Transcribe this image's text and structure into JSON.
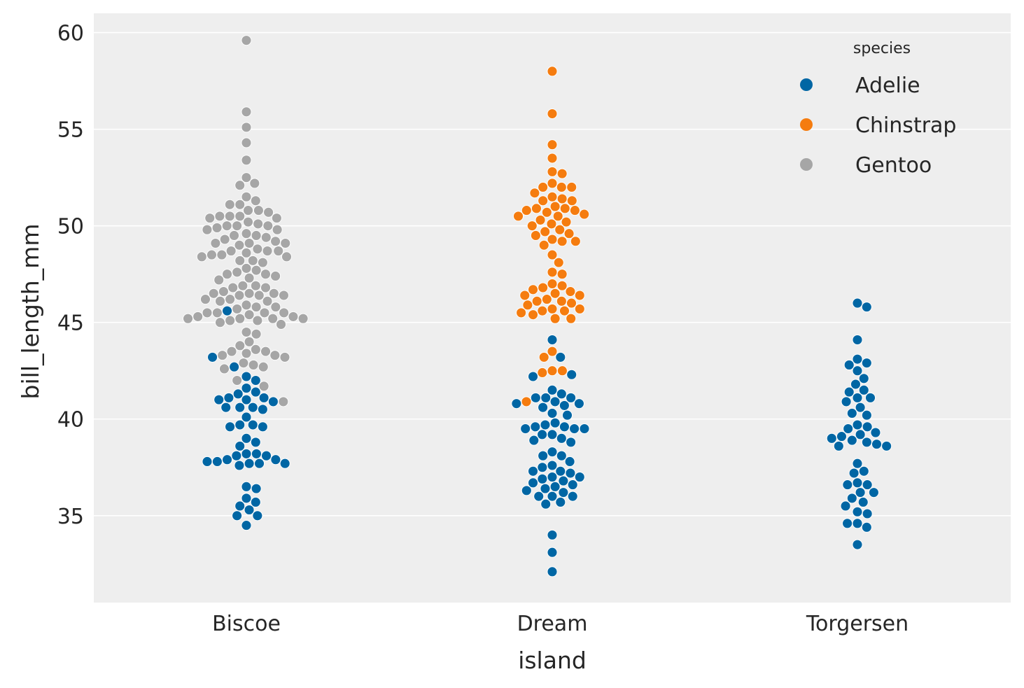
{
  "chart_data": {
    "type": "scatter",
    "subtype": "swarm",
    "title": "",
    "xlabel": "island",
    "ylabel": "bill_length_mm",
    "categories": [
      "Biscoe",
      "Dream",
      "Torgersen"
    ],
    "ylim": [
      30.5,
      61
    ],
    "yticks": [
      35,
      40,
      45,
      50,
      55,
      60
    ],
    "grid": true,
    "background": "#EEEEEE",
    "gridColor": "#FFFFFF",
    "legend": {
      "title": "species",
      "placement": "top-right"
    },
    "series": [
      {
        "name": "Adelie",
        "color": "#0066A4",
        "values": {
          "Biscoe": [
            34.5,
            35.0,
            35.0,
            35.3,
            35.5,
            35.7,
            35.9,
            36.4,
            36.5,
            37.6,
            37.7,
            37.7,
            37.7,
            37.8,
            37.8,
            37.9,
            37.9,
            38.1,
            38.1,
            38.2,
            38.2,
            38.6,
            38.8,
            39.0,
            39.6,
            39.6,
            39.7,
            39.7,
            40.1,
            40.5,
            40.6,
            40.6,
            40.6,
            40.9,
            41.0,
            41.0,
            41.1,
            41.1,
            41.3,
            41.4,
            41.6,
            42.0,
            42.2,
            42.7,
            43.2,
            45.6
          ],
          "Dream": [
            32.1,
            33.1,
            34.0,
            35.6,
            35.7,
            36.0,
            36.0,
            36.0,
            36.2,
            36.3,
            36.4,
            36.5,
            36.6,
            36.7,
            36.8,
            36.9,
            37.0,
            37.0,
            37.2,
            37.3,
            37.3,
            37.5,
            37.6,
            37.8,
            38.1,
            38.1,
            38.3,
            38.8,
            38.9,
            39.0,
            39.2,
            39.2,
            39.5,
            39.5,
            39.5,
            39.6,
            39.6,
            39.7,
            39.8,
            40.2,
            40.3,
            40.6,
            40.7,
            40.8,
            40.8,
            40.9,
            41.1,
            41.1,
            41.1,
            41.3,
            41.5,
            42.2,
            42.3,
            43.2,
            44.1
          ],
          "Torgersen": [
            33.5,
            34.4,
            34.6,
            34.6,
            35.1,
            35.2,
            35.5,
            35.7,
            35.9,
            36.2,
            36.2,
            36.6,
            36.6,
            36.7,
            37.2,
            37.3,
            37.7,
            38.6,
            38.6,
            38.7,
            38.8,
            38.9,
            39.0,
            39.1,
            39.2,
            39.3,
            39.5,
            39.6,
            39.7,
            40.2,
            40.3,
            40.6,
            40.9,
            41.1,
            41.1,
            41.4,
            41.5,
            41.8,
            42.1,
            42.5,
            42.8,
            42.9,
            43.1,
            44.1,
            45.8,
            46.0
          ]
        }
      },
      {
        "name": "Chinstrap",
        "color": "#F57C0F",
        "values": {
          "Dream": [
            40.9,
            42.4,
            42.5,
            42.5,
            43.2,
            43.5,
            45.2,
            45.2,
            45.4,
            45.5,
            45.6,
            45.6,
            45.7,
            45.7,
            45.9,
            46.0,
            46.1,
            46.1,
            46.2,
            46.4,
            46.4,
            46.5,
            46.6,
            46.7,
            46.8,
            46.9,
            47.0,
            47.5,
            47.6,
            48.1,
            48.5,
            49.0,
            49.2,
            49.2,
            49.3,
            49.5,
            49.6,
            49.7,
            49.8,
            50.0,
            50.1,
            50.2,
            50.3,
            50.5,
            50.5,
            50.6,
            50.7,
            50.8,
            50.8,
            50.9,
            50.9,
            51.0,
            51.3,
            51.3,
            51.4,
            51.5,
            51.7,
            52.0,
            52.0,
            52.0,
            52.2,
            52.7,
            52.8,
            53.5,
            54.2,
            55.8,
            58.0
          ]
        }
      },
      {
        "name": "Gentoo",
        "color": "#A6A6A6",
        "values": {
          "Biscoe": [
            40.9,
            41.7,
            42.0,
            42.6,
            42.7,
            42.8,
            42.9,
            43.2,
            43.3,
            43.3,
            43.4,
            43.5,
            43.5,
            43.6,
            43.8,
            44.0,
            44.4,
            44.5,
            44.9,
            45.0,
            45.1,
            45.1,
            45.2,
            45.2,
            45.2,
            45.2,
            45.3,
            45.3,
            45.4,
            45.5,
            45.5,
            45.5,
            45.5,
            45.7,
            45.8,
            45.8,
            45.9,
            46.1,
            46.1,
            46.2,
            46.2,
            46.4,
            46.4,
            46.4,
            46.5,
            46.5,
            46.5,
            46.6,
            46.8,
            46.8,
            46.9,
            46.9,
            47.2,
            47.3,
            47.4,
            47.5,
            47.5,
            47.6,
            47.7,
            47.8,
            48.1,
            48.2,
            48.2,
            48.4,
            48.4,
            48.5,
            48.5,
            48.6,
            48.7,
            48.7,
            48.7,
            48.8,
            49.0,
            49.1,
            49.1,
            49.1,
            49.2,
            49.3,
            49.4,
            49.5,
            49.5,
            49.6,
            49.8,
            49.8,
            49.9,
            50.0,
            50.0,
            50.0,
            50.1,
            50.2,
            50.4,
            50.4,
            50.5,
            50.5,
            50.5,
            50.7,
            50.8,
            50.8,
            51.1,
            51.1,
            51.3,
            51.5,
            52.1,
            52.2,
            52.5,
            53.4,
            54.3,
            55.1,
            55.9,
            59.6
          ]
        }
      }
    ]
  }
}
